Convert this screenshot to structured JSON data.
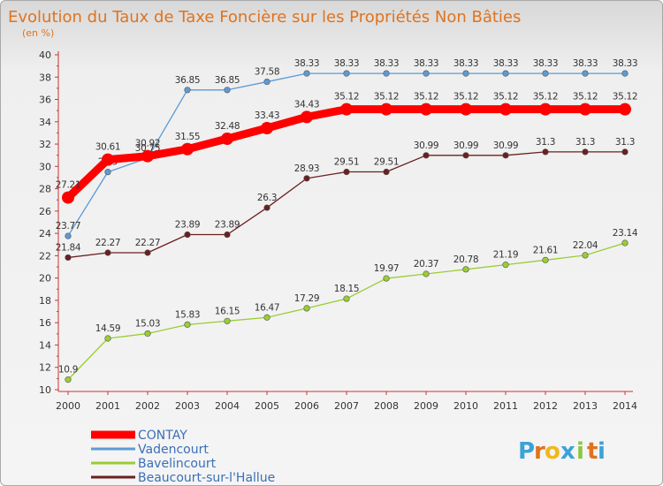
{
  "header": {
    "title": "Evolution du Taux de Taxe Foncière sur les Propriétés Non Bâties",
    "unit": "(en %)"
  },
  "brand": {
    "letters": [
      "P",
      "r",
      "o",
      "x",
      "i",
      "t",
      "i"
    ],
    "colors": [
      "#3aa3d8",
      "#e0731e",
      "#f0b81a",
      "#3aa3d8",
      "#8cc63f",
      "#e0731e",
      "#3aa3d8"
    ]
  },
  "chart_data": {
    "type": "line",
    "title": "Evolution du Taux de Taxe Foncière sur les Propriétés Non Bâties",
    "ylabel": "(en %)",
    "xlabel": "",
    "x": [
      "2000",
      "2001",
      "2002",
      "2003",
      "2004",
      "2005",
      "2006",
      "2007",
      "2008",
      "2009",
      "2010",
      "2011",
      "2012",
      "2013",
      "2014"
    ],
    "ylim": [
      10,
      40
    ],
    "yticks": [
      10,
      12,
      14,
      16,
      18,
      20,
      22,
      24,
      26,
      28,
      30,
      32,
      34,
      36,
      38,
      40
    ],
    "grid": false,
    "legend_position": "bottom-left",
    "series": [
      {
        "name": "Vadencourt",
        "color": "#5b9bd5",
        "values": [
          23.77,
          29.5,
          30.75,
          36.85,
          36.85,
          37.58,
          38.33,
          38.33,
          38.33,
          38.33,
          38.33,
          38.33,
          38.33,
          38.33,
          38.33
        ],
        "labels": [
          "23.77",
          "29.5",
          "30.75",
          "36.85",
          "36.85",
          "37.58",
          "38.33",
          "38.33",
          "38.33",
          "38.33",
          "38.33",
          "38.33",
          "38.33",
          "38.33",
          "38.33"
        ]
      },
      {
        "name": "Beaucourt-sur-l'Hallue",
        "color": "#6b1f1f",
        "values": [
          21.84,
          22.27,
          22.27,
          23.89,
          23.89,
          26.3,
          28.93,
          29.51,
          29.51,
          30.99,
          30.99,
          30.99,
          31.3,
          31.3,
          31.3
        ],
        "labels": [
          "21.84",
          "22.27",
          "22.27",
          "23.89",
          "23.89",
          "26.3",
          "28.93",
          "29.51",
          "29.51",
          "30.99",
          "30.99",
          "30.99",
          "31.3",
          "31.3",
          "31.3"
        ]
      },
      {
        "name": "Bavelincourt",
        "color": "#9acd32",
        "values": [
          10.9,
          14.59,
          15.03,
          15.83,
          16.15,
          16.47,
          17.29,
          18.15,
          19.97,
          20.37,
          20.78,
          21.19,
          21.61,
          22.04,
          23.14
        ],
        "labels": [
          "10.9",
          "14.59",
          "15.03",
          "15.83",
          "16.15",
          "16.47",
          "17.29",
          "18.15",
          "19.97",
          "20.37",
          "20.78",
          "21.19",
          "21.61",
          "22.04",
          "23.14"
        ]
      },
      {
        "name": "CONTAY",
        "color": "#ff0000",
        "values": [
          27.21,
          30.61,
          30.92,
          31.55,
          32.48,
          33.43,
          34.43,
          35.12,
          35.12,
          35.12,
          35.12,
          35.12,
          35.12,
          35.12,
          35.12
        ],
        "labels": [
          "27.21",
          "30.61",
          "30.92",
          "31.55",
          "32.48",
          "33.43",
          "34.43",
          "35.12",
          "35.12",
          "35.12",
          "35.12",
          "35.12",
          "35.12",
          "35.12",
          "35.12"
        ]
      }
    ],
    "legend": [
      "CONTAY",
      "Vadencourt",
      "Bavelincourt",
      "Beaucourt-sur-l'Hallue"
    ]
  }
}
